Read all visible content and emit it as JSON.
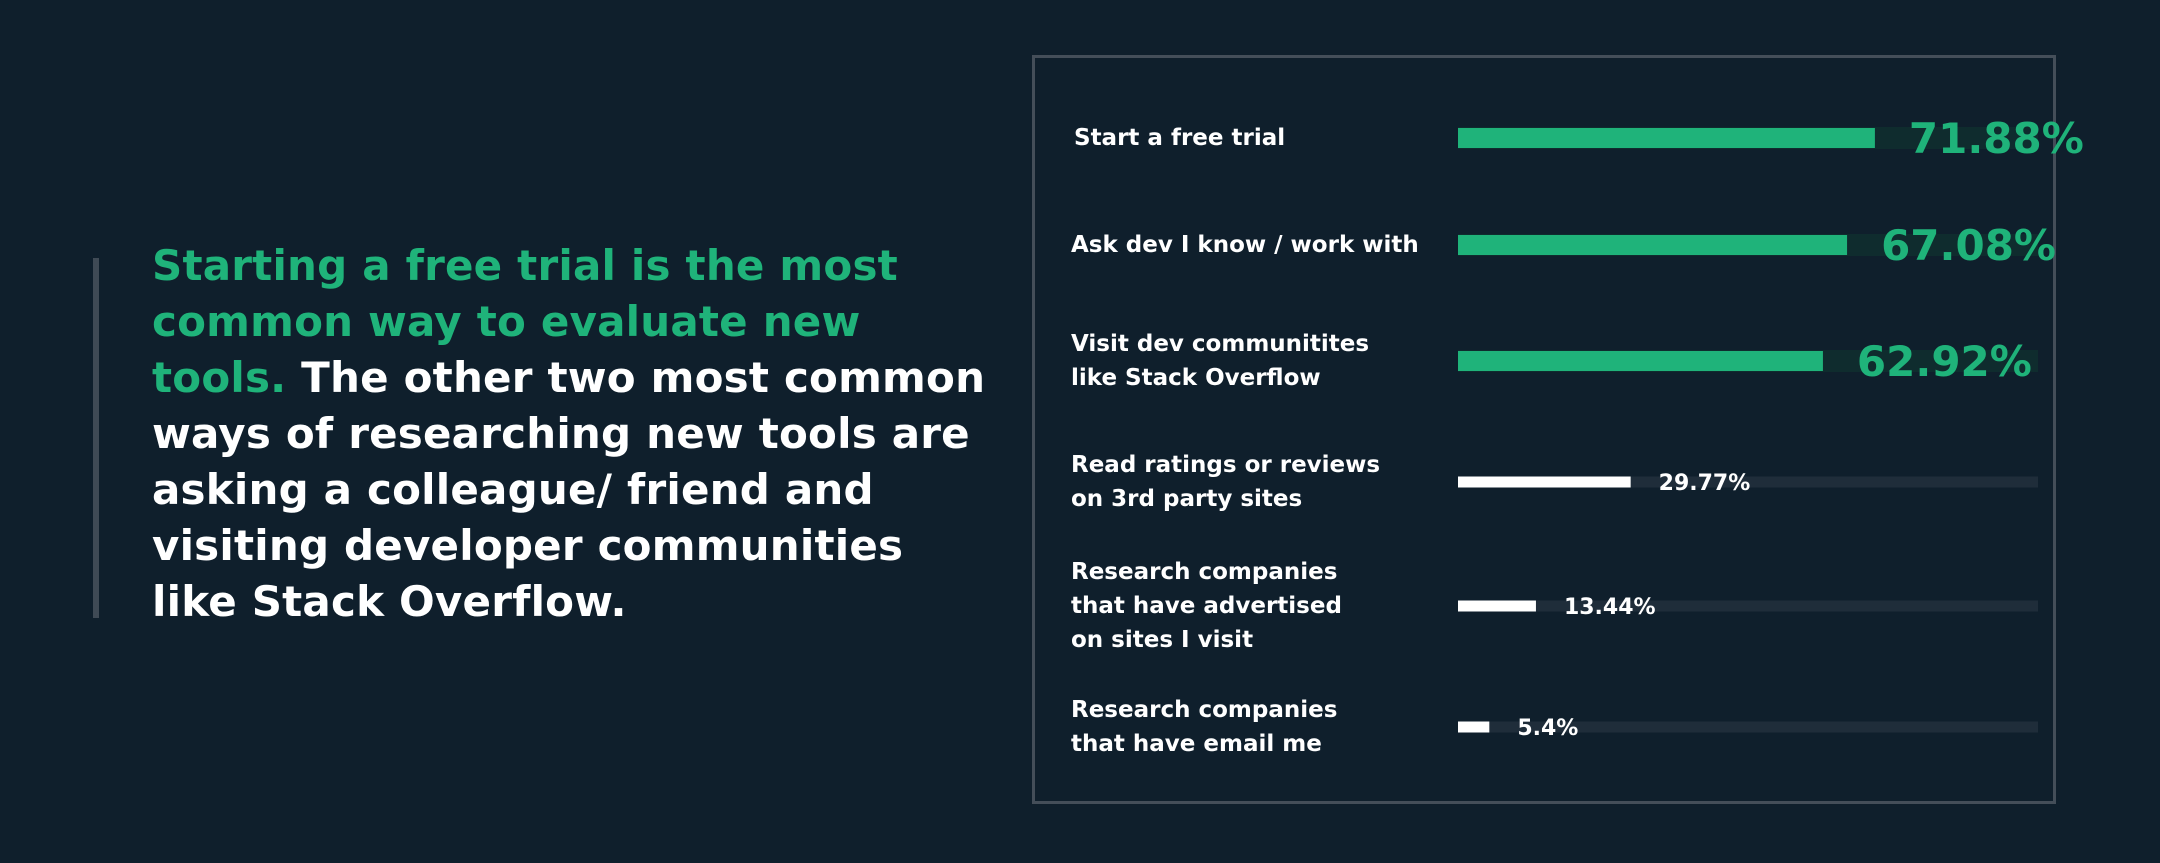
{
  "headline": {
    "accent_text": "Starting a free trial is the most common way to evaluate new tools.",
    "body_text": " The other two most common ways of researching new tools are asking a colleague/ friend and visiting developer communities like Stack Overflow."
  },
  "colors": {
    "background": "#0f1f2c",
    "accent": "#1fb37a",
    "highlight_track": "#0f2c2e",
    "normal_bar": "#ffffff",
    "normal_track": "#1f2d3a",
    "panel_border": "#444e59"
  },
  "chart_data": {
    "type": "bar",
    "orientation": "horizontal",
    "categories": [
      "Start a free trial",
      "Ask dev I know / work with",
      "Visit dev communitites\nlike Stack Overflow",
      "Read ratings or reviews\non 3rd party sites",
      "Research companies\nthat have advertised\non sites I visit",
      "Research companies\nthat have email me"
    ],
    "values": [
      71.88,
      67.08,
      62.92,
      29.77,
      13.44,
      5.4
    ],
    "value_labels": [
      "71.88%",
      "67.08%",
      "62.92%",
      "29.77%",
      "13.44%",
      "5.4%"
    ],
    "highlighted": [
      true,
      true,
      true,
      false,
      false,
      false
    ],
    "xlim": [
      0,
      100
    ],
    "grid": false,
    "legend": "none"
  }
}
